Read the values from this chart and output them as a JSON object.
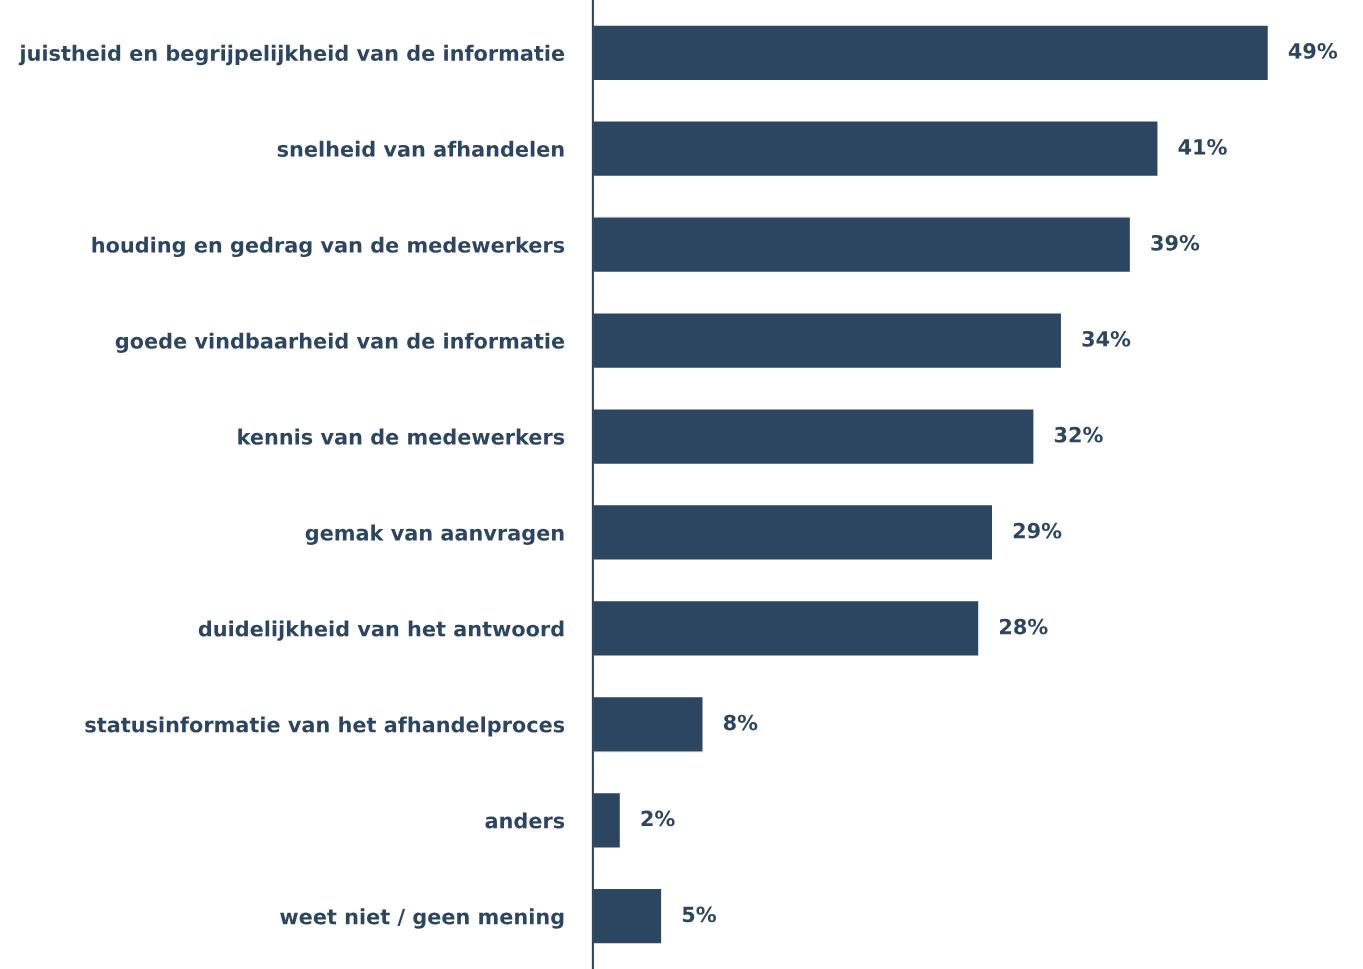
{
  "chart_data": {
    "type": "bar",
    "orientation": "horizontal",
    "categories": [
      "juistheid en begrijpelijkheid van de informatie",
      "snelheid van afhandelen",
      "houding en gedrag van de medewerkers",
      "goede vindbaarheid van de informatie",
      "kennis van de medewerkers",
      "gemak van aanvragen",
      "duidelijkheid van het antwoord",
      "statusinformatie van het afhandelproces",
      "anders",
      "weet niet / geen mening"
    ],
    "values": [
      49,
      41,
      39,
      34,
      32,
      29,
      28,
      8,
      2,
      5
    ],
    "value_labels": [
      "49%",
      "41%",
      "39%",
      "34%",
      "32%",
      "29%",
      "28%",
      "8%",
      "2%",
      "5%"
    ],
    "color": "#2c4561",
    "grid": false,
    "legend": false
  }
}
